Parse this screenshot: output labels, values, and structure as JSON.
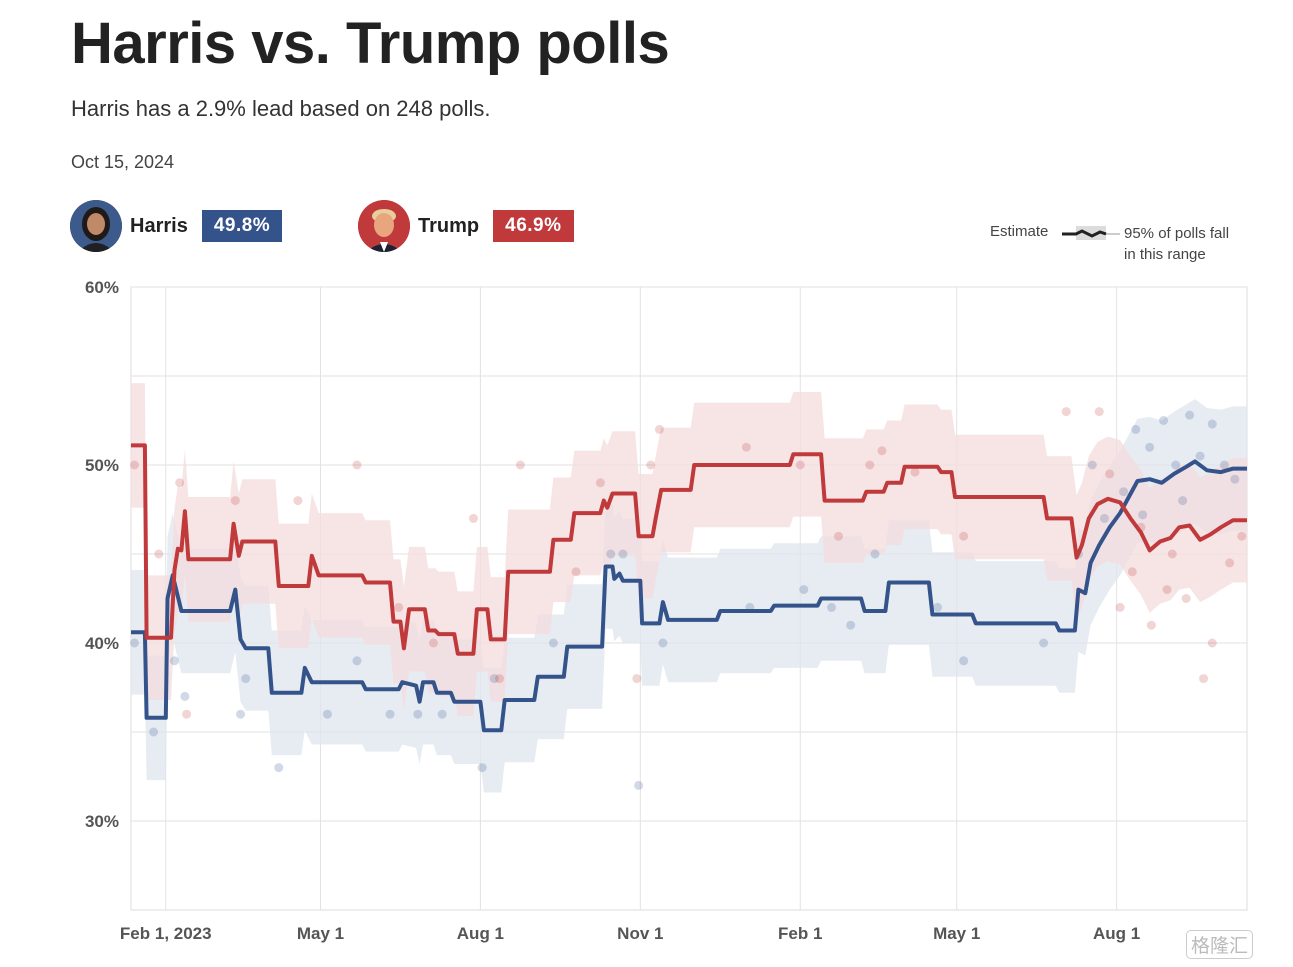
{
  "header": {
    "title": "Harris vs. Trump polls",
    "subtitle": "Harris has a 2.9% lead based on 248 polls.",
    "date": "Oct 15, 2024"
  },
  "candidates": [
    {
      "name": "Harris",
      "value": "49.8%",
      "color": "#34538b",
      "avatar": "harris-portrait-icon"
    },
    {
      "name": "Trump",
      "value": "46.9%",
      "color": "#c0393b",
      "avatar": "trump-portrait-icon"
    }
  ],
  "legend": {
    "estimate": "Estimate",
    "range_line1": "95% of polls fall",
    "range_line2": "in this range"
  },
  "watermark": "格隆汇",
  "chart_data": {
    "type": "line",
    "x_axis": {
      "type": "date",
      "range": [
        "2023-01-12",
        "2024-10-15"
      ],
      "ticks": [
        {
          "date": "2023-02-01",
          "label": "Feb 1, 2023"
        },
        {
          "date": "2023-05-01",
          "label": "May 1"
        },
        {
          "date": "2023-08-01",
          "label": "Aug 1"
        },
        {
          "date": "2023-11-01",
          "label": "Nov 1"
        },
        {
          "date": "2024-02-01",
          "label": "Feb 1"
        },
        {
          "date": "2024-05-01",
          "label": "May 1"
        },
        {
          "date": "2024-08-01",
          "label": "Aug 1"
        }
      ]
    },
    "y_axis": {
      "range": [
        25,
        60
      ],
      "ticks": [
        30,
        40,
        50,
        60
      ],
      "tick_labels": [
        "30%",
        "40%",
        "50%",
        "60%"
      ],
      "gridlines": [
        30,
        35,
        40,
        45,
        50,
        55,
        60
      ]
    },
    "grid": true,
    "series": [
      {
        "name": "Harris",
        "color": "#34538b",
        "band_color": "#dfe5ee",
        "band_halfwidth": 3.5,
        "points": [
          [
            "2023-01-12",
            40.6
          ],
          [
            "2023-01-20",
            40.6
          ],
          [
            "2023-01-21",
            35.8
          ],
          [
            "2023-02-01",
            35.8
          ],
          [
            "2023-02-02",
            42.5
          ],
          [
            "2023-02-05",
            43.8
          ],
          [
            "2023-02-08",
            42.6
          ],
          [
            "2023-02-10",
            41.8
          ],
          [
            "2023-03-10",
            41.8
          ],
          [
            "2023-03-13",
            43.0
          ],
          [
            "2023-03-16",
            40.2
          ],
          [
            "2023-03-19",
            39.7
          ],
          [
            "2023-04-01",
            39.7
          ],
          [
            "2023-04-03",
            37.2
          ],
          [
            "2023-04-20",
            37.2
          ],
          [
            "2023-04-22",
            38.6
          ],
          [
            "2023-04-26",
            37.8
          ],
          [
            "2023-05-25",
            37.8
          ],
          [
            "2023-05-27",
            37.4
          ],
          [
            "2023-06-15",
            37.4
          ],
          [
            "2023-06-17",
            37.8
          ],
          [
            "2023-06-25",
            37.6
          ],
          [
            "2023-06-27",
            36.7
          ],
          [
            "2023-06-29",
            37.8
          ],
          [
            "2023-07-05",
            37.8
          ],
          [
            "2023-07-07",
            37.2
          ],
          [
            "2023-07-15",
            37.2
          ],
          [
            "2023-07-17",
            36.7
          ],
          [
            "2023-08-01",
            36.7
          ],
          [
            "2023-08-03",
            35.1
          ],
          [
            "2023-08-13",
            35.1
          ],
          [
            "2023-08-15",
            36.8
          ],
          [
            "2023-09-01",
            36.8
          ],
          [
            "2023-09-03",
            38.1
          ],
          [
            "2023-09-18",
            38.1
          ],
          [
            "2023-09-20",
            39.8
          ],
          [
            "2023-10-10",
            39.8
          ],
          [
            "2023-10-12",
            44.3
          ],
          [
            "2023-10-16",
            44.3
          ],
          [
            "2023-10-17",
            43.6
          ],
          [
            "2023-10-20",
            43.9
          ],
          [
            "2023-10-22",
            43.5
          ],
          [
            "2023-11-01",
            43.5
          ],
          [
            "2023-11-02",
            41.1
          ],
          [
            "2023-11-12",
            41.1
          ],
          [
            "2023-11-14",
            42.3
          ],
          [
            "2023-11-17",
            41.3
          ],
          [
            "2023-12-15",
            41.3
          ],
          [
            "2023-12-17",
            41.8
          ],
          [
            "2024-01-15",
            41.8
          ],
          [
            "2024-01-17",
            42.1
          ],
          [
            "2024-02-11",
            42.1
          ],
          [
            "2024-02-13",
            42.5
          ],
          [
            "2024-03-07",
            42.5
          ],
          [
            "2024-03-09",
            41.8
          ],
          [
            "2024-03-21",
            41.8
          ],
          [
            "2024-03-23",
            43.4
          ],
          [
            "2024-04-15",
            43.4
          ],
          [
            "2024-04-17",
            41.6
          ],
          [
            "2024-05-10",
            41.6
          ],
          [
            "2024-05-12",
            41.1
          ],
          [
            "2024-06-27",
            41.1
          ],
          [
            "2024-06-29",
            40.7
          ],
          [
            "2024-07-08",
            40.7
          ],
          [
            "2024-07-10",
            43.0
          ],
          [
            "2024-07-14",
            42.8
          ],
          [
            "2024-07-17",
            44.5
          ],
          [
            "2024-07-22",
            45.5
          ],
          [
            "2024-07-28",
            46.5
          ],
          [
            "2024-08-03",
            47.3
          ],
          [
            "2024-08-08",
            48.2
          ],
          [
            "2024-08-13",
            49.1
          ],
          [
            "2024-08-20",
            49.2
          ],
          [
            "2024-08-27",
            49.0
          ],
          [
            "2024-09-03",
            49.5
          ],
          [
            "2024-09-10",
            49.9
          ],
          [
            "2024-09-15",
            50.2
          ],
          [
            "2024-09-22",
            49.7
          ],
          [
            "2024-09-30",
            49.6
          ],
          [
            "2024-10-07",
            49.8
          ],
          [
            "2024-10-15",
            49.8
          ]
        ]
      },
      {
        "name": "Trump",
        "color": "#c0393b",
        "band_color": "#f4dcdd",
        "band_halfwidth": 3.5,
        "points": [
          [
            "2023-01-12",
            51.1
          ],
          [
            "2023-01-20",
            51.1
          ],
          [
            "2023-01-21",
            40.3
          ],
          [
            "2023-02-04",
            40.3
          ],
          [
            "2023-02-06",
            44.1
          ],
          [
            "2023-02-08",
            45.3
          ],
          [
            "2023-02-10",
            45.2
          ],
          [
            "2023-02-12",
            47.4
          ],
          [
            "2023-02-14",
            44.7
          ],
          [
            "2023-03-10",
            44.7
          ],
          [
            "2023-03-12",
            46.7
          ],
          [
            "2023-03-15",
            44.9
          ],
          [
            "2023-03-17",
            45.7
          ],
          [
            "2023-04-05",
            45.7
          ],
          [
            "2023-04-07",
            43.2
          ],
          [
            "2023-04-24",
            43.2
          ],
          [
            "2023-04-26",
            44.9
          ],
          [
            "2023-04-30",
            43.8
          ],
          [
            "2023-05-25",
            43.8
          ],
          [
            "2023-05-27",
            43.4
          ],
          [
            "2023-06-10",
            43.4
          ],
          [
            "2023-06-12",
            41.2
          ],
          [
            "2023-06-16",
            41.2
          ],
          [
            "2023-06-18",
            39.7
          ],
          [
            "2023-06-21",
            41.9
          ],
          [
            "2023-06-30",
            41.9
          ],
          [
            "2023-07-02",
            40.7
          ],
          [
            "2023-07-06",
            40.7
          ],
          [
            "2023-07-08",
            40.5
          ],
          [
            "2023-07-17",
            40.5
          ],
          [
            "2023-07-19",
            39.4
          ],
          [
            "2023-07-28",
            39.4
          ],
          [
            "2023-07-30",
            41.9
          ],
          [
            "2023-08-05",
            41.9
          ],
          [
            "2023-08-07",
            40.2
          ],
          [
            "2023-08-15",
            40.2
          ],
          [
            "2023-08-17",
            44.0
          ],
          [
            "2023-09-10",
            44.0
          ],
          [
            "2023-09-12",
            45.8
          ],
          [
            "2023-09-22",
            45.8
          ],
          [
            "2023-09-24",
            47.3
          ],
          [
            "2023-10-09",
            47.3
          ],
          [
            "2023-10-11",
            48.0
          ],
          [
            "2023-10-13",
            47.6
          ],
          [
            "2023-10-16",
            48.4
          ],
          [
            "2023-10-29",
            48.4
          ],
          [
            "2023-10-31",
            46.0
          ],
          [
            "2023-11-08",
            46.0
          ],
          [
            "2023-11-10",
            47.1
          ],
          [
            "2023-11-13",
            48.6
          ],
          [
            "2023-11-30",
            48.6
          ],
          [
            "2023-12-02",
            50.0
          ],
          [
            "2024-01-26",
            50.0
          ],
          [
            "2024-01-28",
            50.6
          ],
          [
            "2024-02-13",
            50.6
          ],
          [
            "2024-02-15",
            48.0
          ],
          [
            "2024-03-08",
            48.0
          ],
          [
            "2024-03-10",
            48.5
          ],
          [
            "2024-03-20",
            48.5
          ],
          [
            "2024-03-22",
            49.0
          ],
          [
            "2024-03-30",
            49.0
          ],
          [
            "2024-04-01",
            49.9
          ],
          [
            "2024-04-20",
            49.9
          ],
          [
            "2024-04-22",
            49.6
          ],
          [
            "2024-04-28",
            49.6
          ],
          [
            "2024-04-30",
            48.2
          ],
          [
            "2024-06-20",
            48.2
          ],
          [
            "2024-06-22",
            47.0
          ],
          [
            "2024-07-06",
            47.0
          ],
          [
            "2024-07-09",
            44.8
          ],
          [
            "2024-07-12",
            45.5
          ],
          [
            "2024-07-16",
            47.0
          ],
          [
            "2024-07-21",
            47.8
          ],
          [
            "2024-07-27",
            48.1
          ],
          [
            "2024-08-03",
            47.9
          ],
          [
            "2024-08-09",
            47.0
          ],
          [
            "2024-08-15",
            46.2
          ],
          [
            "2024-08-20",
            45.2
          ],
          [
            "2024-08-26",
            45.7
          ],
          [
            "2024-09-01",
            45.9
          ],
          [
            "2024-09-06",
            46.5
          ],
          [
            "2024-09-12",
            46.6
          ],
          [
            "2024-09-18",
            45.8
          ],
          [
            "2024-09-24",
            46.1
          ],
          [
            "2024-09-30",
            46.5
          ],
          [
            "2024-10-07",
            46.9
          ],
          [
            "2024-10-15",
            46.9
          ]
        ]
      }
    ],
    "polls": [
      {
        "candidate": "Harris",
        "points": [
          [
            "2023-01-14",
            40.0
          ],
          [
            "2023-01-25",
            35.0
          ],
          [
            "2023-02-06",
            39.0
          ],
          [
            "2023-02-12",
            37.0
          ],
          [
            "2023-03-16",
            36.0
          ],
          [
            "2023-03-19",
            38.0
          ],
          [
            "2023-04-07",
            33.0
          ],
          [
            "2023-05-05",
            36.0
          ],
          [
            "2023-05-22",
            39.0
          ],
          [
            "2023-06-10",
            36.0
          ],
          [
            "2023-06-26",
            36.0
          ],
          [
            "2023-07-10",
            36.0
          ],
          [
            "2023-08-02",
            33.0
          ],
          [
            "2023-08-09",
            38.0
          ],
          [
            "2023-09-12",
            40.0
          ],
          [
            "2023-10-15",
            45.0
          ],
          [
            "2023-10-22",
            45.0
          ],
          [
            "2023-10-31",
            32.0
          ],
          [
            "2023-11-14",
            40.0
          ],
          [
            "2024-01-03",
            42.0
          ],
          [
            "2024-02-03",
            43.0
          ],
          [
            "2024-02-19",
            42.0
          ],
          [
            "2024-03-01",
            41.0
          ],
          [
            "2024-03-15",
            45.0
          ],
          [
            "2024-04-20",
            42.0
          ],
          [
            "2024-05-05",
            39.0
          ],
          [
            "2024-06-20",
            40.0
          ],
          [
            "2024-07-10",
            45.0
          ],
          [
            "2024-07-18",
            50.0
          ],
          [
            "2024-07-25",
            47.0
          ],
          [
            "2024-08-05",
            48.5
          ],
          [
            "2024-08-12",
            52.0
          ],
          [
            "2024-08-20",
            51.0
          ],
          [
            "2024-08-28",
            52.5
          ],
          [
            "2024-09-04",
            50.0
          ],
          [
            "2024-09-12",
            52.8
          ],
          [
            "2024-09-18",
            50.5
          ],
          [
            "2024-09-25",
            52.3
          ],
          [
            "2024-10-02",
            50.0
          ],
          [
            "2024-10-08",
            49.2
          ],
          [
            "2024-08-16",
            47.2
          ],
          [
            "2024-09-08",
            48.0
          ]
        ]
      },
      {
        "candidate": "Trump",
        "points": [
          [
            "2023-01-14",
            50.0
          ],
          [
            "2023-01-28",
            45.0
          ],
          [
            "2023-02-09",
            49.0
          ],
          [
            "2023-02-13",
            36.0
          ],
          [
            "2023-03-13",
            48.0
          ],
          [
            "2023-04-18",
            48.0
          ],
          [
            "2023-05-22",
            50.0
          ],
          [
            "2023-06-15",
            42.0
          ],
          [
            "2023-07-05",
            40.0
          ],
          [
            "2023-07-28",
            47.0
          ],
          [
            "2023-08-12",
            38.0
          ],
          [
            "2023-08-24",
            50.0
          ],
          [
            "2023-09-25",
            44.0
          ],
          [
            "2023-10-09",
            49.0
          ],
          [
            "2023-10-30",
            38.0
          ],
          [
            "2023-11-07",
            50.0
          ],
          [
            "2023-11-12",
            52.0
          ],
          [
            "2024-01-01",
            51.0
          ],
          [
            "2024-02-01",
            50.0
          ],
          [
            "2024-02-23",
            46.0
          ],
          [
            "2024-03-12",
            50.0
          ],
          [
            "2024-03-19",
            50.8
          ],
          [
            "2024-04-07",
            49.6
          ],
          [
            "2024-05-05",
            46.0
          ],
          [
            "2024-07-03",
            53.0
          ],
          [
            "2024-07-22",
            53.0
          ],
          [
            "2024-08-03",
            42.0
          ],
          [
            "2024-08-10",
            44.0
          ],
          [
            "2024-08-21",
            41.0
          ],
          [
            "2024-08-30",
            43.0
          ],
          [
            "2024-09-10",
            42.5
          ],
          [
            "2024-09-20",
            38.0
          ],
          [
            "2024-09-25",
            40.0
          ],
          [
            "2024-10-05",
            44.5
          ],
          [
            "2024-10-12",
            46.0
          ],
          [
            "2024-07-28",
            49.5
          ],
          [
            "2024-08-15",
            46.5
          ],
          [
            "2024-09-02",
            45.0
          ]
        ]
      }
    ]
  }
}
